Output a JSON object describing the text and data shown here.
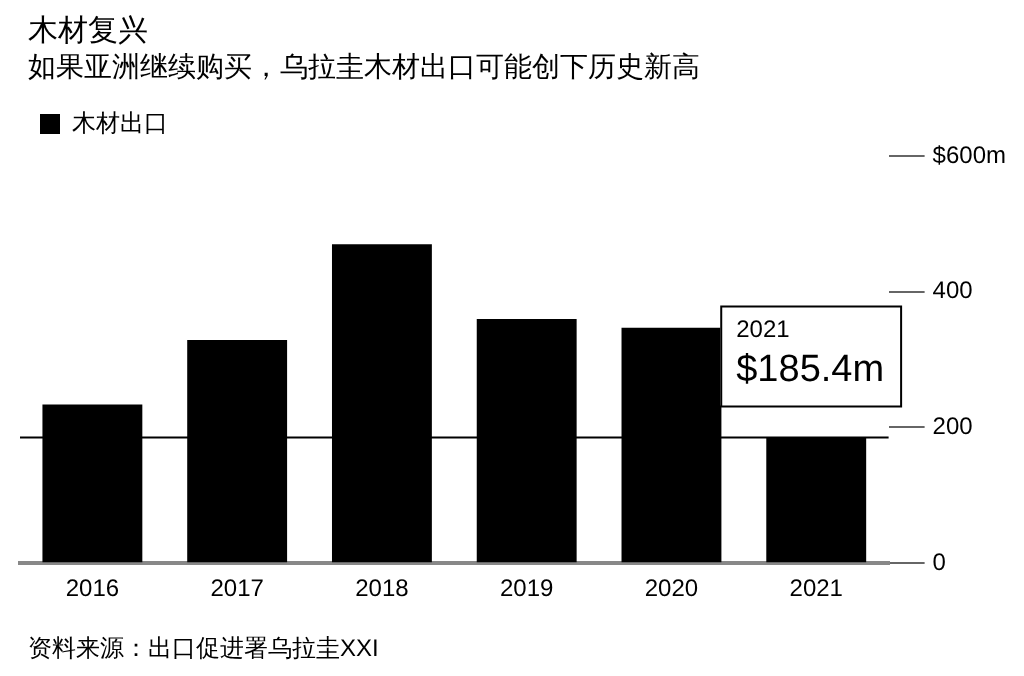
{
  "chart_data": {
    "type": "bar",
    "title": "木材复兴",
    "subtitle": "如果亚洲继续购买，乌拉圭木材出口可能创下历史新高",
    "categories": [
      "2016",
      "2017",
      "2018",
      "2019",
      "2020",
      "2021"
    ],
    "series": [
      {
        "name": "木材出口",
        "color": "#000000",
        "values": [
          234,
          329,
          470,
          360,
          347,
          185.4
        ]
      }
    ],
    "ylim": [
      0,
      600
    ],
    "yticks": [
      0,
      200,
      400,
      {
        "value": 600,
        "label": "$600m"
      }
    ],
    "grid": false,
    "legend": "top left",
    "ref_lines": [
      {
        "axis": "y",
        "value": 185.4,
        "color": "#000000"
      }
    ],
    "annotations": [
      {
        "text": "2021\n$185.4m",
        "x": "2021",
        "y": 185.4
      },
      "资料来源：出口促进署乌拉圭XXI"
    ]
  }
}
